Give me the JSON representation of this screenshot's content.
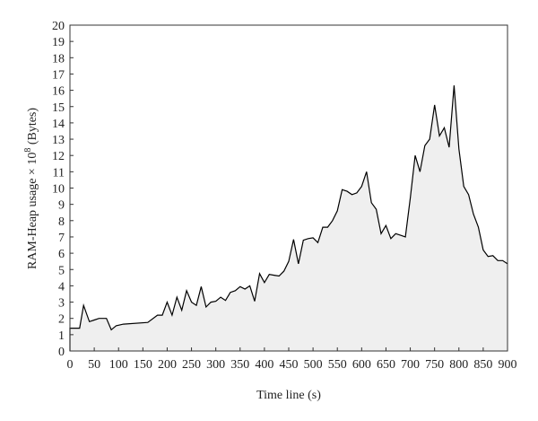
{
  "chart_data": {
    "type": "area",
    "x_label": "Time line (s)",
    "y_label": {
      "text": "RAM-Heap usage × 10",
      "superscript": "8",
      "suffix": " (Bytes)"
    },
    "x": [
      0,
      10,
      20,
      28,
      40,
      50,
      60,
      75,
      85,
      95,
      110,
      160,
      180,
      190,
      200,
      210,
      220,
      230,
      240,
      250,
      260,
      270,
      280,
      290,
      300,
      310,
      320,
      330,
      340,
      350,
      360,
      370,
      380,
      390,
      400,
      410,
      420,
      430,
      440,
      450,
      460,
      470,
      480,
      490,
      500,
      510,
      520,
      530,
      540,
      550,
      560,
      570,
      580,
      590,
      600,
      610,
      620,
      630,
      640,
      650,
      660,
      670,
      680,
      690,
      700,
      710,
      720,
      730,
      740,
      750,
      760,
      770,
      780,
      790,
      800,
      810,
      820,
      830,
      840,
      850,
      860,
      870,
      880,
      890,
      900
    ],
    "values": [
      1.4,
      1.4,
      1.4,
      2.8,
      1.8,
      1.9,
      2.0,
      2.0,
      1.3,
      1.55,
      1.65,
      1.75,
      2.2,
      2.2,
      3.0,
      2.2,
      3.3,
      2.5,
      3.7,
      3.0,
      2.8,
      3.95,
      2.7,
      3.0,
      3.05,
      3.3,
      3.1,
      3.6,
      3.7,
      3.95,
      3.8,
      4.0,
      3.05,
      4.75,
      4.2,
      4.7,
      4.65,
      4.6,
      4.9,
      5.5,
      6.85,
      5.35,
      6.8,
      6.9,
      6.95,
      6.65,
      7.6,
      7.6,
      8.0,
      8.6,
      9.9,
      9.8,
      9.6,
      9.7,
      10.1,
      11.0,
      9.1,
      8.7,
      7.2,
      7.7,
      6.9,
      7.2,
      7.1,
      7.0,
      9.4,
      12.0,
      11.0,
      12.6,
      13.0,
      15.1,
      13.2,
      13.7,
      12.5,
      16.3,
      12.4,
      10.1,
      9.6,
      8.4,
      7.6,
      6.2,
      5.8,
      5.85,
      5.55,
      5.55,
      5.35
    ],
    "line_color": "#000000",
    "fill_color": "#efefef",
    "xlim": [
      0,
      900
    ],
    "xticks": [
      0,
      50,
      100,
      150,
      200,
      250,
      300,
      350,
      400,
      450,
      500,
      550,
      600,
      650,
      700,
      750,
      800,
      850,
      900
    ],
    "ylim": [
      0,
      20
    ],
    "yticks": [
      0,
      1,
      2,
      3,
      4,
      5,
      6,
      7,
      8,
      9,
      10,
      11,
      12,
      13,
      14,
      15,
      16,
      17,
      18,
      19,
      20
    ]
  }
}
